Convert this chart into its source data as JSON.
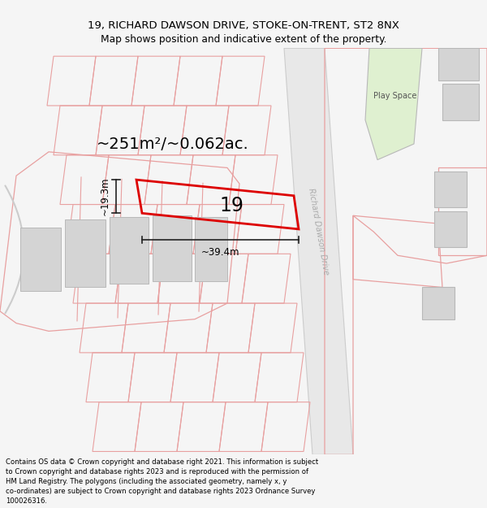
{
  "title_line1": "19, RICHARD DAWSON DRIVE, STOKE-ON-TRENT, ST2 8NX",
  "title_line2": "Map shows position and indicative extent of the property.",
  "footer_text": "Contains OS data © Crown copyright and database right 2021. This information is subject\nto Crown copyright and database rights 2023 and is reproduced with the permission of\nHM Land Registry. The polygons (including the associated geometry, namely x, y\nco-ordinates) are subject to Crown copyright and database rights 2023 Ordnance Survey\n100026316.",
  "bg_color": "#f5f5f5",
  "map_bg": "#ffffff",
  "area_label": "~251m²/~0.062ac.",
  "number_label": "19",
  "width_label": "~39.4m",
  "height_label": "~19.3m",
  "road_label": "Richard Dawson Drive",
  "play_space_label": "Play Space",
  "plot_red": "#dd0000",
  "pink_edge": "#e8a0a0",
  "pink_fill": "#fce8e8",
  "road_fill": "#e8e8e8",
  "road_edge": "#cccccc",
  "green_fill": "#dff0d0",
  "gray_fill": "#d4d4d4",
  "gray_edge": "#b8b8b8",
  "dark_gray_edge": "#888888",
  "dim_color": "#222222"
}
